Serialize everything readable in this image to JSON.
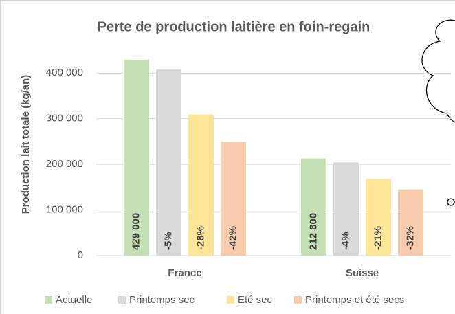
{
  "chart_data": {
    "type": "bar",
    "title": "Perte de production laitière en foin-regain",
    "y_label": "Production lait totale (kg/an)",
    "categories": [
      "France",
      "Suisse"
    ],
    "series": [
      {
        "name": "Actuelle",
        "color": "#c5e0b4",
        "values": [
          429000,
          212800
        ],
        "value_labels": [
          "429 000",
          "212 800"
        ]
      },
      {
        "name": "Printemps sec",
        "color": "#d9d9d9",
        "values": [
          408000,
          204000
        ],
        "annotations": [
          "-5%",
          "-4%"
        ]
      },
      {
        "name": "Eté sec",
        "color": "#ffe699",
        "values": [
          309000,
          168000
        ],
        "annotations": [
          "-28%",
          "-21%"
        ]
      },
      {
        "name": "Printemps et été secs",
        "color": "#f8cbad",
        "values": [
          249000,
          145000
        ],
        "annotations": [
          "-42%",
          "-32%"
        ]
      }
    ],
    "ylim": [
      0,
      450000
    ],
    "yticks": [
      0,
      {
        "value": 100000,
        "label": "100 000"
      },
      {
        "value": 200000,
        "label": "200 000"
      },
      {
        "value": 300000,
        "label": "300 000"
      },
      {
        "value": 400000,
        "label": "400 000"
      }
    ],
    "grid": true,
    "legend": "bottom"
  }
}
